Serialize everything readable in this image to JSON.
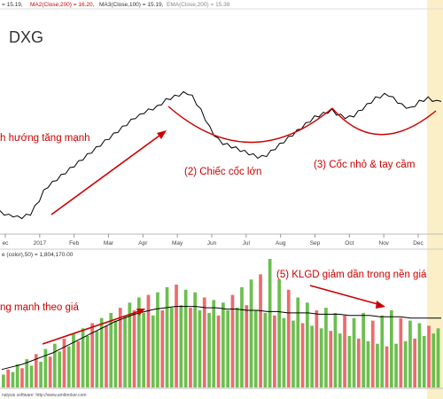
{
  "header": {
    "price_indicators": [
      "= 15.19,",
      "MA2(Close,200) = 16.20,",
      "MA3(Close,100) = 15.19,",
      "EMA(Close,200) = 15.38"
    ],
    "ticker": "DXG"
  },
  "volume_header": "e (color),50) = 1,804,170.00",
  "footer": "nalysis software: http://www.amibroker.com",
  "annotations": {
    "trend": "h hướng tăng mạnh",
    "big_cup": "(2) Chiếc cốc lớn",
    "small_cup": "(3) Cốc nhỏ & tay cầm",
    "volume_trend": "ng mạnh theo giá",
    "volume_base": "(5) KLGD giảm dần trong nền giá"
  },
  "colors": {
    "price_line": "#000000",
    "annotation": "#cc0000",
    "volume_up": "#6bbf4e",
    "volume_down": "#ef6b6b",
    "volume_ma": "#000000",
    "highlight": "#fbefc8"
  },
  "chart_data": {
    "type": "line",
    "x_ticks": [
      "ec",
      "2017",
      "Feb",
      "Mar",
      "Apr",
      "May",
      "Jun",
      "Jul",
      "Aug",
      "Sep",
      "Oct",
      "Nov",
      "Dec"
    ],
    "price_series": {
      "name": "Close",
      "values": [
        21,
        20,
        19,
        19,
        18,
        18,
        19,
        20,
        24,
        28,
        33,
        36,
        38,
        40,
        42,
        44,
        46,
        48,
        50,
        52,
        54,
        56,
        58,
        60,
        62,
        64,
        66,
        68,
        70,
        72,
        74,
        76,
        77,
        79,
        80,
        81,
        82,
        84,
        86,
        87,
        88,
        89,
        90,
        90,
        88,
        84,
        80,
        75,
        70,
        66,
        63,
        61,
        60,
        59,
        58,
        57,
        56,
        55,
        54,
        53,
        53,
        54,
        56,
        58,
        60,
        62,
        64,
        66,
        68,
        70,
        72,
        74,
        76,
        77,
        78,
        79,
        80,
        78,
        77,
        76,
        76,
        77,
        79,
        81,
        83,
        85,
        87,
        88,
        89,
        89,
        87,
        85,
        83,
        82,
        81,
        83,
        85,
        86,
        87,
        86,
        85,
        86
      ]
    },
    "volume": {
      "bars": [
        10,
        14,
        12,
        18,
        15,
        22,
        17,
        26,
        20,
        30,
        24,
        34,
        28,
        38,
        32,
        42,
        36,
        46,
        40,
        50,
        44,
        54,
        48,
        58,
        52,
        62,
        56,
        66,
        60,
        70,
        58,
        72,
        56,
        74,
        60,
        78,
        62,
        80,
        64,
        76,
        62,
        74,
        60,
        70,
        58,
        68,
        56,
        66,
        60,
        72,
        62,
        78,
        64,
        84,
        60,
        88,
        58,
        100,
        56,
        84,
        54,
        76,
        52,
        70,
        50,
        66,
        48,
        60,
        46,
        62,
        44,
        58,
        42,
        56,
        40,
        54,
        38,
        58,
        36,
        52,
        34,
        56,
        32,
        60,
        34,
        54,
        36,
        52,
        38,
        50,
        40,
        48,
        42,
        46
      ],
      "ma": [
        14,
        16,
        18,
        21,
        24,
        27,
        31,
        35,
        39,
        43,
        47,
        51,
        54,
        57,
        59,
        61,
        62,
        63,
        63,
        63,
        62,
        62,
        61,
        61,
        60,
        60,
        59,
        59,
        58,
        58,
        58,
        57,
        57,
        57,
        56,
        56,
        56,
        55,
        55,
        55,
        54,
        54,
        54,
        54
      ]
    }
  }
}
